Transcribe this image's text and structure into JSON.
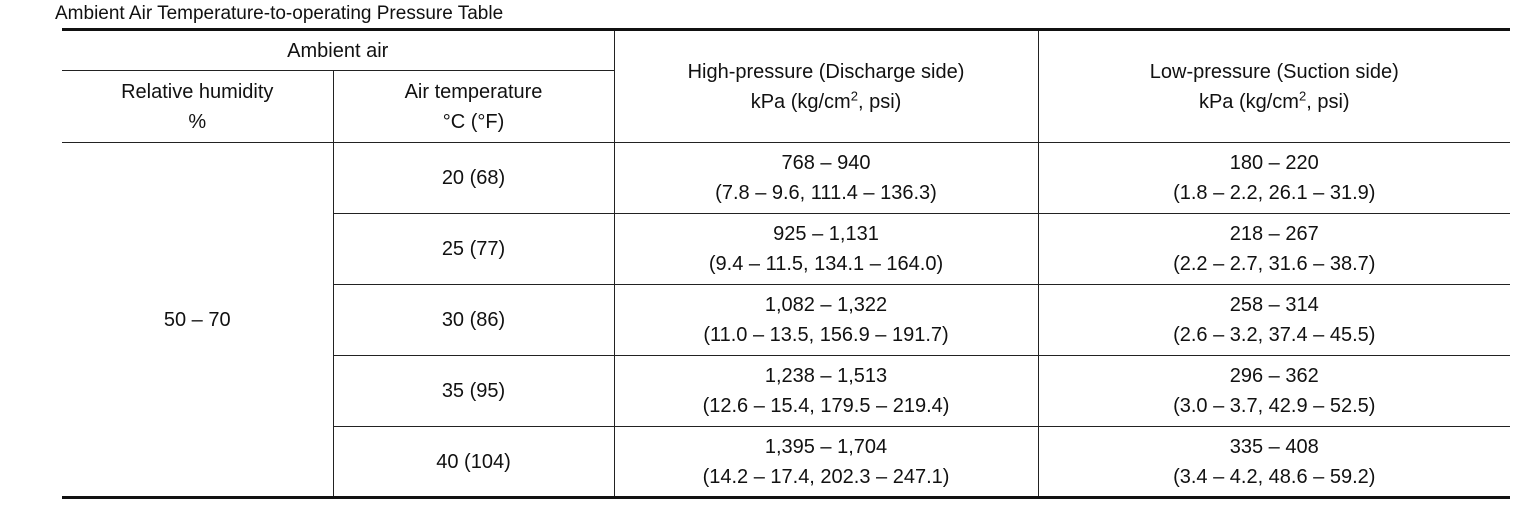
{
  "title": "Ambient Air Temperature-to-operating Pressure Table",
  "header": {
    "ambient_air": "Ambient air",
    "relative_humidity": "Relative humidity",
    "relative_humidity_unit": "%",
    "air_temperature": "Air temperature",
    "air_temperature_unit": "°C (°F)",
    "high_pressure": "High-pressure (Discharge side)",
    "high_pressure_unit_prefix": "kPa (kg/cm",
    "high_pressure_unit_sup": "2",
    "high_pressure_unit_suffix": ", psi)",
    "low_pressure": "Low-pressure (Suction side)",
    "low_pressure_unit_prefix": "kPa (kg/cm",
    "low_pressure_unit_sup": "2",
    "low_pressure_unit_suffix": ", psi)"
  },
  "relative_humidity_value": "50 – 70",
  "rows": [
    {
      "air_temp": "20 (68)",
      "high_kpa": "768 – 940",
      "high_other": "(7.8 – 9.6, 111.4 – 136.3)",
      "low_kpa": "180 – 220",
      "low_other": "(1.8 – 2.2, 26.1 – 31.9)"
    },
    {
      "air_temp": "25 (77)",
      "high_kpa": "925 – 1,131",
      "high_other": "(9.4 – 11.5, 134.1 – 164.0)",
      "low_kpa": "218 – 267",
      "low_other": "(2.2 – 2.7, 31.6 – 38.7)"
    },
    {
      "air_temp": "30 (86)",
      "high_kpa": "1,082 – 1,322",
      "high_other": "(11.0 – 13.5, 156.9 – 191.7)",
      "low_kpa": "258 – 314",
      "low_other": "(2.6 – 3.2, 37.4 – 45.5)"
    },
    {
      "air_temp": "35 (95)",
      "high_kpa": "1,238 – 1,513",
      "high_other": "(12.6 – 15.4, 179.5 – 219.4)",
      "low_kpa": "296 – 362",
      "low_other": "(3.0 – 3.7, 42.9 – 52.5)"
    },
    {
      "air_temp": "40 (104)",
      "high_kpa": "1,395 – 1,704",
      "high_other": "(14.2 – 17.4, 202.3 – 247.1)",
      "low_kpa": "335 – 408",
      "low_other": "(3.4 – 4.2, 48.6 – 59.2)"
    }
  ]
}
